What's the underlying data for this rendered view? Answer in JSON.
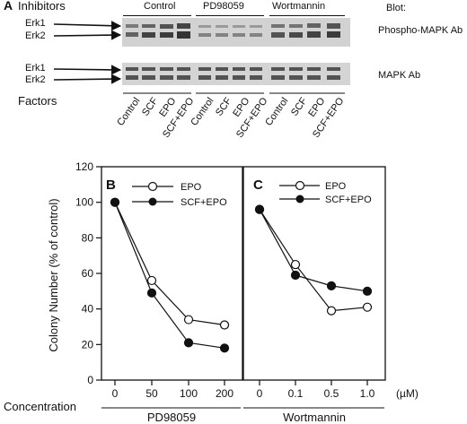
{
  "panel_a": {
    "letter": "A",
    "inhibitors_label": "Inhibitors",
    "groups": [
      "Control",
      "PD98059",
      "Wortmannin"
    ],
    "blot_header": "Blot:",
    "blot1_label": "Phospho-MAPK Ab",
    "blot2_label": "MAPK Ab",
    "band_labels": [
      "Erk1",
      "Erk2"
    ],
    "factors_label": "Factors",
    "lane_labels": [
      "Control",
      "SCF",
      "EPO",
      "SCF+EPO",
      "Control",
      "SCF",
      "EPO",
      "SCF+EPO",
      "Control",
      "SCF",
      "EPO",
      "SCF+EPO"
    ]
  },
  "chart_data": [
    {
      "type": "line",
      "panel_letter": "B",
      "x": [
        "0",
        "50",
        "100",
        "200"
      ],
      "series": [
        {
          "name": "EPO",
          "marker": "open-circle",
          "values": [
            100,
            56,
            34,
            31
          ]
        },
        {
          "name": "SCF+EPO",
          "marker": "filled-circle",
          "values": [
            100,
            49,
            21,
            18
          ]
        }
      ],
      "ylabel": "Colony Number (% of control)",
      "ylim": [
        0,
        120
      ],
      "yticks": [
        "0",
        "20",
        "40",
        "60",
        "80",
        "100",
        "120"
      ],
      "group_label": "PD98059",
      "grid": false,
      "legend": "top-right"
    },
    {
      "type": "line",
      "panel_letter": "C",
      "x": [
        "0",
        "0.1",
        "0.5",
        "1.0"
      ],
      "series": [
        {
          "name": "EPO",
          "marker": "open-circle",
          "values": [
            96,
            65,
            39,
            41
          ]
        },
        {
          "name": "SCF+EPO",
          "marker": "filled-circle",
          "values": [
            96,
            59,
            53,
            50
          ]
        }
      ],
      "ylim": [
        0,
        120
      ],
      "group_label": "Wortmannin",
      "grid": false,
      "legend": "top-right"
    }
  ],
  "x_axis": {
    "concentration_label": "Concentration",
    "unit": "(µM)"
  }
}
